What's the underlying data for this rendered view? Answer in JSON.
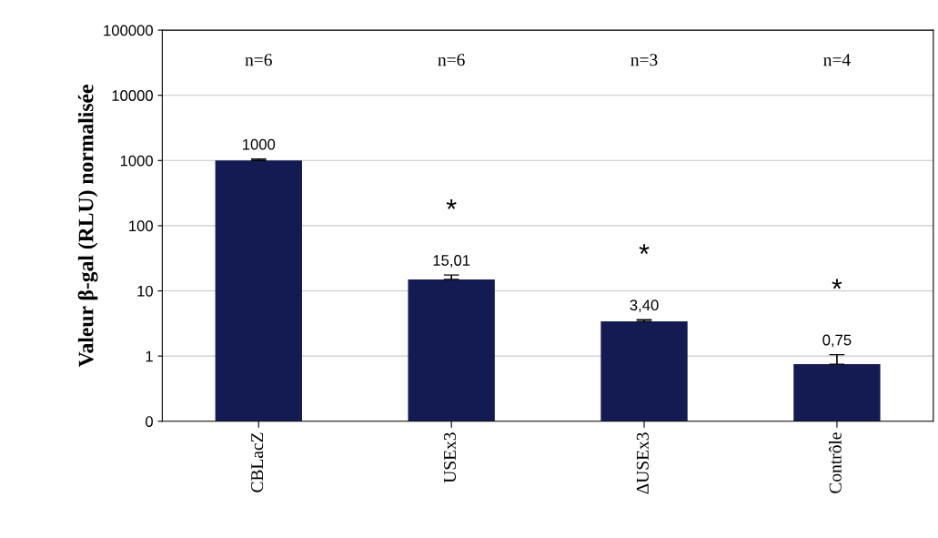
{
  "chart_data": {
    "type": "bar",
    "ylabel": "Valeur β-gal (RLU) normalisée",
    "categories": [
      "CBLacZ",
      "USEx3",
      "ΔUSEx3",
      "Contrôle"
    ],
    "values": [
      1000,
      15.01,
      3.4,
      0.75
    ],
    "errors": [
      [
        1000,
        1050
      ],
      [
        15.01,
        17.5
      ],
      [
        3.4,
        3.6
      ],
      [
        0.75,
        1.05
      ]
    ],
    "value_labels": [
      "1000",
      "15,01",
      "3,40",
      "0,75"
    ],
    "color": "#141a52",
    "log": true,
    "grid": "y",
    "ylim": [
      0.1,
      100000
    ],
    "yticks": [
      {
        "value": 0.1,
        "label": "0"
      },
      1,
      10,
      100,
      1000,
      10000,
      100000
    ],
    "annotations": [
      "n=6",
      "n=6",
      "n=3",
      "n=4",
      "*",
      "*",
      "*"
    ]
  }
}
